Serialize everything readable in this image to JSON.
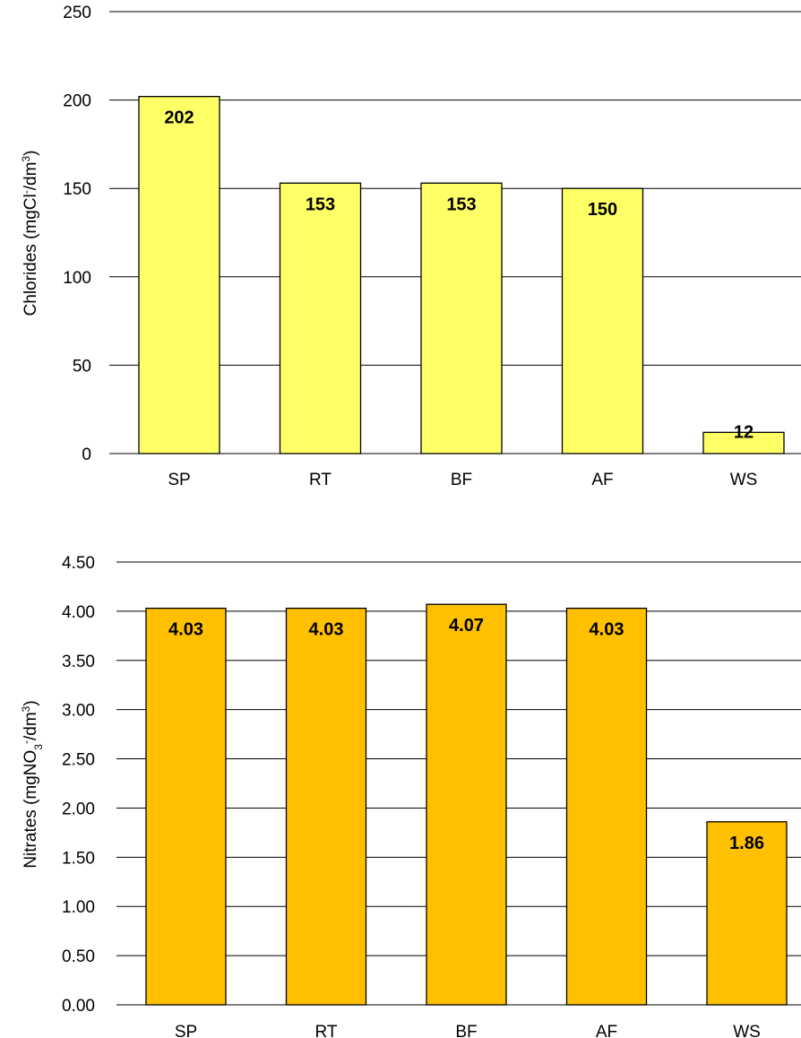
{
  "chart_data": [
    {
      "type": "bar",
      "categories": [
        "SP",
        "RT",
        "BF",
        "AF",
        "WS"
      ],
      "values": [
        202,
        153,
        153,
        150,
        12
      ],
      "data_labels": [
        "202",
        "153",
        "153",
        "150",
        "12"
      ],
      "ylabel": {
        "main": "Chlorides (mgCl",
        "sup1": "-",
        "mid": "/dm",
        "sup2": "3",
        "end": ")"
      },
      "ylim": [
        0,
        250
      ],
      "yticks": [
        0,
        50,
        100,
        150,
        200,
        250
      ],
      "ytick_labels": [
        "0",
        "50",
        "100",
        "150",
        "200",
        "250"
      ],
      "grid": true,
      "bar_color": "#ffff66"
    },
    {
      "type": "bar",
      "categories": [
        "SP",
        "RT",
        "BF",
        "AF",
        "WS"
      ],
      "values": [
        4.03,
        4.03,
        4.07,
        4.03,
        1.86
      ],
      "data_labels": [
        "4.03",
        "4.03",
        "4.07",
        "4.03",
        "1.86"
      ],
      "ylabel": {
        "main": "Nitrates (mgNO",
        "sub": "3",
        "sup1": "-",
        "mid": "/dm",
        "sup2": "3",
        "end": ")"
      },
      "ylim": [
        0,
        4.5
      ],
      "yticks": [
        0,
        0.5,
        1,
        1.5,
        2,
        2.5,
        3,
        3.5,
        4,
        4.5
      ],
      "ytick_labels": [
        "0.00",
        "0.50",
        "1.00",
        "1.50",
        "2.00",
        "2.50",
        "3.00",
        "3.50",
        "4.00",
        "4.50"
      ],
      "grid": true,
      "bar_color": "#ffc000"
    }
  ]
}
